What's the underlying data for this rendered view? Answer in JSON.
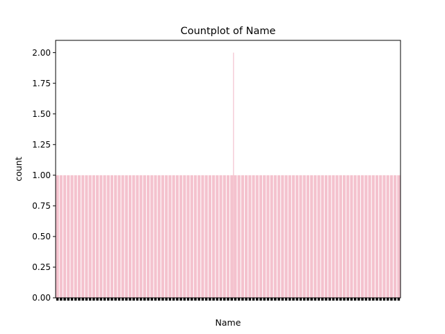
{
  "chart_data": {
    "type": "bar",
    "title": "Countplot of Name",
    "xlabel": "Name",
    "ylabel": "count",
    "ylim": [
      0,
      2.1
    ],
    "yticks": [
      "0.00",
      "0.25",
      "0.50",
      "0.75",
      "1.00",
      "1.25",
      "1.50",
      "1.75",
      "2.00"
    ],
    "bar_color": "#f4c2ce",
    "category_count": 95,
    "counts": [
      1,
      1,
      1,
      1,
      1,
      1,
      1,
      1,
      1,
      1,
      1,
      1,
      1,
      1,
      1,
      1,
      1,
      1,
      1,
      1,
      1,
      1,
      1,
      1,
      1,
      1,
      1,
      1,
      1,
      1,
      1,
      1,
      1,
      1,
      1,
      1,
      1,
      1,
      1,
      1,
      1,
      1,
      1,
      1,
      1,
      1,
      1,
      1,
      1,
      1,
      1,
      1,
      1,
      1,
      1,
      1,
      1,
      1,
      1,
      1,
      1,
      1,
      1,
      1,
      1,
      1,
      1,
      1,
      1,
      1,
      1,
      1,
      1,
      1,
      1,
      1,
      1,
      1,
      1,
      1,
      1,
      1,
      1,
      1,
      1,
      1,
      1,
      1,
      1,
      1,
      1,
      1,
      1,
      1,
      1
    ],
    "thin_bar": {
      "category_index": 48.5,
      "value": 2
    },
    "grid": false,
    "legend": "none"
  }
}
